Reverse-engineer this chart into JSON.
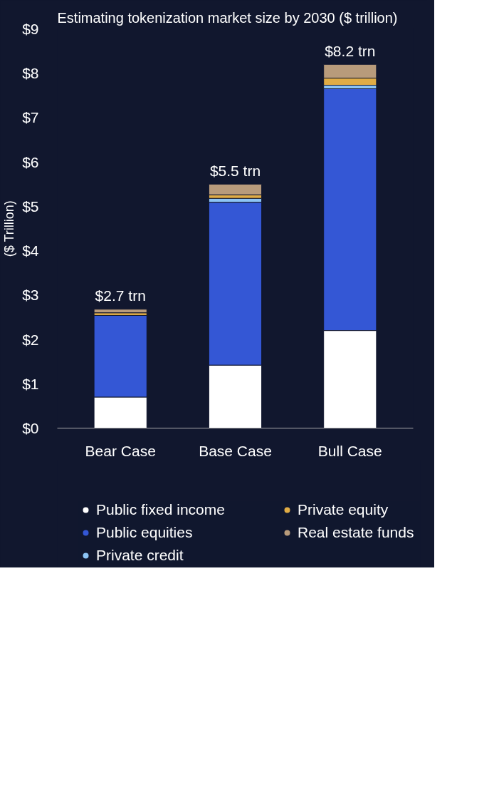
{
  "chart_data": {
    "type": "bar",
    "title": "Estimating tokenization market size by 2030 ($ trillion)",
    "ylabel": "($ Trillion)",
    "categories": [
      "Bear Case",
      "Base Case",
      "Bull Case"
    ],
    "stacked": true,
    "series": [
      {
        "name": "Public fixed income",
        "color": "#ffffff",
        "values": [
          0.7,
          1.42,
          2.2
        ]
      },
      {
        "name": "Public equities",
        "color": "#3457d5",
        "values": [
          1.84,
          3.67,
          5.45
        ]
      },
      {
        "name": "Private credit",
        "color": "#8cc4f5",
        "values": [
          null,
          0.09,
          0.08
        ]
      },
      {
        "name": "Private equity",
        "color": "#e0ac45",
        "values": [
          0.06,
          0.08,
          0.16
        ]
      },
      {
        "name": "Real estate funds",
        "color": "#b89b7b",
        "values": [
          0.08,
          0.24,
          0.31
        ]
      }
    ],
    "totals": [
      "$2.7 trn",
      "$5.5 trn",
      "$8.2 trn"
    ],
    "ylim": [
      0,
      9
    ],
    "yticks": [
      {
        "value": 0,
        "label": "$0"
      },
      {
        "value": 1,
        "label": "$1"
      },
      {
        "value": 2,
        "label": "$2"
      },
      {
        "value": 3,
        "label": "$3"
      },
      {
        "value": 4,
        "label": "$4"
      },
      {
        "value": 5,
        "label": "$5"
      },
      {
        "value": 6,
        "label": "$6"
      },
      {
        "value": 7,
        "label": "$7"
      },
      {
        "value": 8,
        "label": "$8"
      },
      {
        "value": 9,
        "label": "$9"
      }
    ],
    "grid": false,
    "legend": "bottom"
  }
}
